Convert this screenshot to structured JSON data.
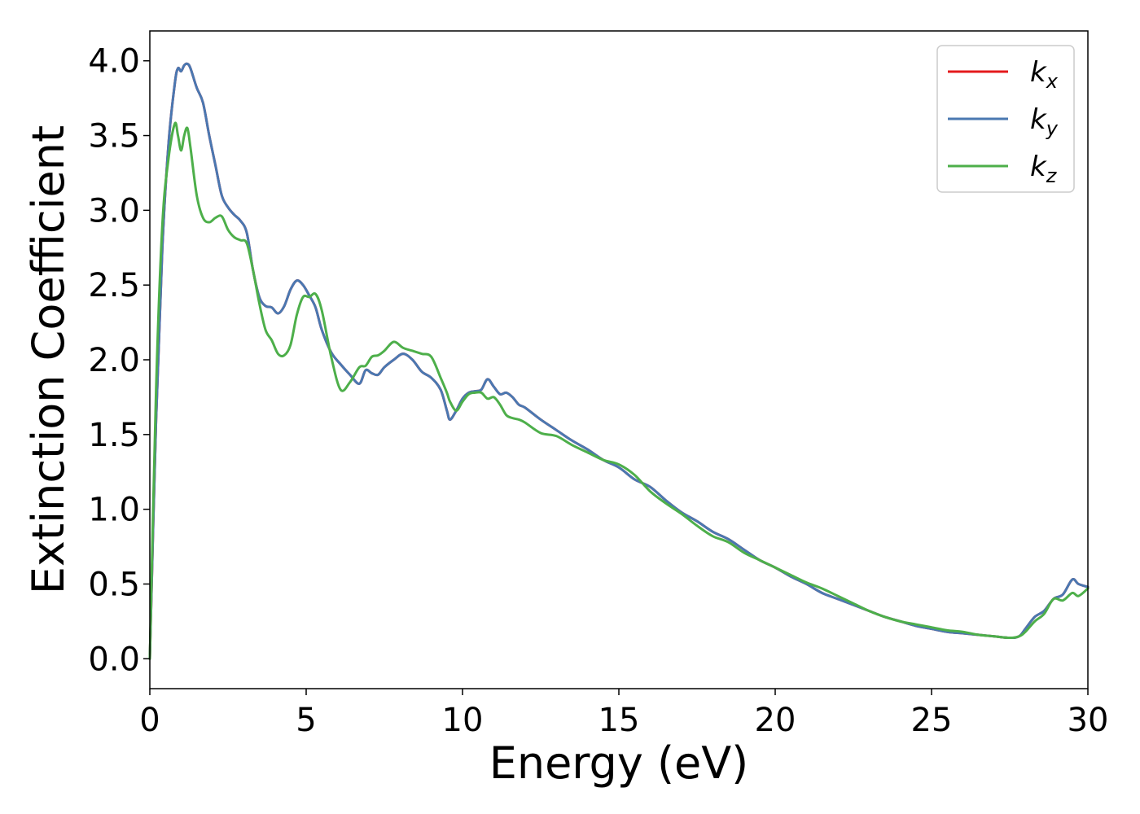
{
  "chart_data": {
    "type": "line",
    "xlabel": "Energy (eV)",
    "ylabel": "Extinction Coefficient",
    "xlim": [
      0,
      30
    ],
    "ylim": [
      -0.2,
      4.2
    ],
    "xticks": [
      0,
      5,
      10,
      15,
      20,
      25,
      30
    ],
    "yticks": [
      0.0,
      0.5,
      1.0,
      1.5,
      2.0,
      2.5,
      3.0,
      3.5,
      4.0
    ],
    "ytick_labels": [
      "0.0",
      "0.5",
      "1.0",
      "1.5",
      "2.0",
      "2.5",
      "3.0",
      "3.5",
      "4.0"
    ],
    "grid": false,
    "legend_position": "top-right",
    "series": [
      {
        "name": "k",
        "sub": "x",
        "color": "#e41a1c",
        "x": [
          0,
          0.2,
          0.4,
          0.6,
          0.8,
          0.9,
          1.0,
          1.1,
          1.2,
          1.3,
          1.5,
          1.7,
          1.9,
          2.1,
          2.3,
          2.5,
          2.7,
          2.9,
          3.1,
          3.3,
          3.5,
          3.7,
          3.9,
          4.1,
          4.3,
          4.5,
          4.7,
          4.9,
          5.1,
          5.3,
          5.5,
          5.8,
          6.1,
          6.4,
          6.7,
          6.9,
          7.1,
          7.3,
          7.5,
          7.8,
          8.1,
          8.4,
          8.7,
          9.0,
          9.3,
          9.5,
          9.6,
          9.8,
          10.0,
          10.2,
          10.4,
          10.6,
          10.8,
          11.0,
          11.2,
          11.4,
          11.6,
          11.8,
          12.0,
          12.5,
          13.0,
          13.5,
          14.0,
          14.5,
          15.0,
          15.5,
          16.0,
          16.5,
          17.0,
          17.5,
          18.0,
          18.5,
          19.0,
          19.5,
          20.0,
          20.5,
          21.0,
          21.5,
          22.0,
          22.5,
          23.0,
          23.5,
          24.0,
          24.5,
          25.0,
          25.5,
          26.0,
          26.5,
          27.0,
          27.5,
          27.8,
          28.0,
          28.3,
          28.6,
          28.9,
          29.2,
          29.5,
          29.7,
          30.0
        ],
        "y": [
          0.0,
          1.6,
          2.75,
          3.45,
          3.85,
          3.95,
          3.93,
          3.97,
          3.98,
          3.95,
          3.82,
          3.72,
          3.5,
          3.3,
          3.1,
          3.02,
          2.97,
          2.93,
          2.85,
          2.6,
          2.42,
          2.36,
          2.35,
          2.31,
          2.36,
          2.47,
          2.53,
          2.5,
          2.43,
          2.35,
          2.2,
          2.05,
          1.97,
          1.9,
          1.84,
          1.93,
          1.91,
          1.9,
          1.95,
          2.0,
          2.04,
          2.0,
          1.92,
          1.88,
          1.8,
          1.66,
          1.6,
          1.66,
          1.74,
          1.78,
          1.79,
          1.8,
          1.87,
          1.82,
          1.77,
          1.78,
          1.75,
          1.7,
          1.68,
          1.6,
          1.53,
          1.46,
          1.4,
          1.33,
          1.28,
          1.2,
          1.15,
          1.06,
          0.98,
          0.92,
          0.85,
          0.8,
          0.73,
          0.66,
          0.61,
          0.55,
          0.5,
          0.44,
          0.4,
          0.36,
          0.32,
          0.28,
          0.25,
          0.22,
          0.2,
          0.18,
          0.17,
          0.16,
          0.15,
          0.14,
          0.15,
          0.2,
          0.28,
          0.32,
          0.4,
          0.43,
          0.53,
          0.5,
          0.48
        ]
      },
      {
        "name": "k",
        "sub": "y",
        "color": "#4a78b1",
        "x": [
          0,
          0.2,
          0.4,
          0.6,
          0.8,
          0.9,
          1.0,
          1.1,
          1.2,
          1.3,
          1.5,
          1.7,
          1.9,
          2.1,
          2.3,
          2.5,
          2.7,
          2.9,
          3.1,
          3.3,
          3.5,
          3.7,
          3.9,
          4.1,
          4.3,
          4.5,
          4.7,
          4.9,
          5.1,
          5.3,
          5.5,
          5.8,
          6.1,
          6.4,
          6.7,
          6.9,
          7.1,
          7.3,
          7.5,
          7.8,
          8.1,
          8.4,
          8.7,
          9.0,
          9.3,
          9.5,
          9.6,
          9.8,
          10.0,
          10.2,
          10.4,
          10.6,
          10.8,
          11.0,
          11.2,
          11.4,
          11.6,
          11.8,
          12.0,
          12.5,
          13.0,
          13.5,
          14.0,
          14.5,
          15.0,
          15.5,
          16.0,
          16.5,
          17.0,
          17.5,
          18.0,
          18.5,
          19.0,
          19.5,
          20.0,
          20.5,
          21.0,
          21.5,
          22.0,
          22.5,
          23.0,
          23.5,
          24.0,
          24.5,
          25.0,
          25.5,
          26.0,
          26.5,
          27.0,
          27.5,
          27.8,
          28.0,
          28.3,
          28.6,
          28.9,
          29.2,
          29.5,
          29.7,
          30.0
        ],
        "y": [
          0.0,
          1.6,
          2.75,
          3.45,
          3.85,
          3.95,
          3.93,
          3.97,
          3.98,
          3.95,
          3.82,
          3.72,
          3.5,
          3.3,
          3.1,
          3.02,
          2.97,
          2.93,
          2.85,
          2.6,
          2.42,
          2.36,
          2.35,
          2.31,
          2.36,
          2.47,
          2.53,
          2.5,
          2.43,
          2.35,
          2.2,
          2.05,
          1.97,
          1.9,
          1.84,
          1.93,
          1.91,
          1.9,
          1.95,
          2.0,
          2.04,
          2.0,
          1.92,
          1.88,
          1.8,
          1.66,
          1.6,
          1.66,
          1.74,
          1.78,
          1.79,
          1.8,
          1.87,
          1.82,
          1.77,
          1.78,
          1.75,
          1.7,
          1.68,
          1.6,
          1.53,
          1.46,
          1.4,
          1.33,
          1.28,
          1.2,
          1.15,
          1.06,
          0.98,
          0.92,
          0.85,
          0.8,
          0.73,
          0.66,
          0.61,
          0.55,
          0.5,
          0.44,
          0.4,
          0.36,
          0.32,
          0.28,
          0.25,
          0.22,
          0.2,
          0.18,
          0.17,
          0.16,
          0.15,
          0.14,
          0.15,
          0.2,
          0.28,
          0.32,
          0.4,
          0.43,
          0.53,
          0.5,
          0.48
        ]
      },
      {
        "name": "k",
        "sub": "z",
        "color": "#4daf4a",
        "x": [
          0,
          0.2,
          0.4,
          0.6,
          0.8,
          0.9,
          1.0,
          1.1,
          1.2,
          1.3,
          1.5,
          1.7,
          1.9,
          2.1,
          2.3,
          2.5,
          2.7,
          2.9,
          3.1,
          3.3,
          3.5,
          3.7,
          3.9,
          4.1,
          4.3,
          4.5,
          4.7,
          4.9,
          5.1,
          5.3,
          5.5,
          5.8,
          6.1,
          6.4,
          6.7,
          6.9,
          7.1,
          7.3,
          7.5,
          7.8,
          8.1,
          8.4,
          8.7,
          9.0,
          9.3,
          9.5,
          9.6,
          9.8,
          10.0,
          10.2,
          10.4,
          10.6,
          10.8,
          11.0,
          11.2,
          11.4,
          11.6,
          11.8,
          12.0,
          12.5,
          13.0,
          13.5,
          14.0,
          14.5,
          15.0,
          15.5,
          16.0,
          16.5,
          17.0,
          17.5,
          18.0,
          18.5,
          19.0,
          19.5,
          20.0,
          20.5,
          21.0,
          21.5,
          22.0,
          22.5,
          23.0,
          23.5,
          24.0,
          24.5,
          25.0,
          25.5,
          26.0,
          26.5,
          27.0,
          27.5,
          27.8,
          28.0,
          28.3,
          28.6,
          28.9,
          29.2,
          29.5,
          29.7,
          30.0
        ],
        "y": [
          0.0,
          1.8,
          2.9,
          3.35,
          3.58,
          3.5,
          3.4,
          3.5,
          3.55,
          3.42,
          3.1,
          2.95,
          2.92,
          2.95,
          2.96,
          2.87,
          2.82,
          2.8,
          2.78,
          2.6,
          2.38,
          2.2,
          2.13,
          2.04,
          2.03,
          2.1,
          2.3,
          2.42,
          2.42,
          2.44,
          2.33,
          2.02,
          1.8,
          1.85,
          1.95,
          1.96,
          2.02,
          2.03,
          2.06,
          2.12,
          2.08,
          2.06,
          2.04,
          2.02,
          1.88,
          1.78,
          1.72,
          1.66,
          1.72,
          1.77,
          1.78,
          1.78,
          1.74,
          1.75,
          1.7,
          1.63,
          1.61,
          1.6,
          1.58,
          1.51,
          1.49,
          1.43,
          1.38,
          1.33,
          1.3,
          1.23,
          1.12,
          1.04,
          0.97,
          0.89,
          0.82,
          0.78,
          0.71,
          0.66,
          0.61,
          0.56,
          0.51,
          0.47,
          0.42,
          0.37,
          0.32,
          0.28,
          0.25,
          0.23,
          0.21,
          0.19,
          0.18,
          0.16,
          0.15,
          0.14,
          0.15,
          0.18,
          0.25,
          0.3,
          0.4,
          0.39,
          0.44,
          0.42,
          0.47
        ]
      }
    ]
  }
}
